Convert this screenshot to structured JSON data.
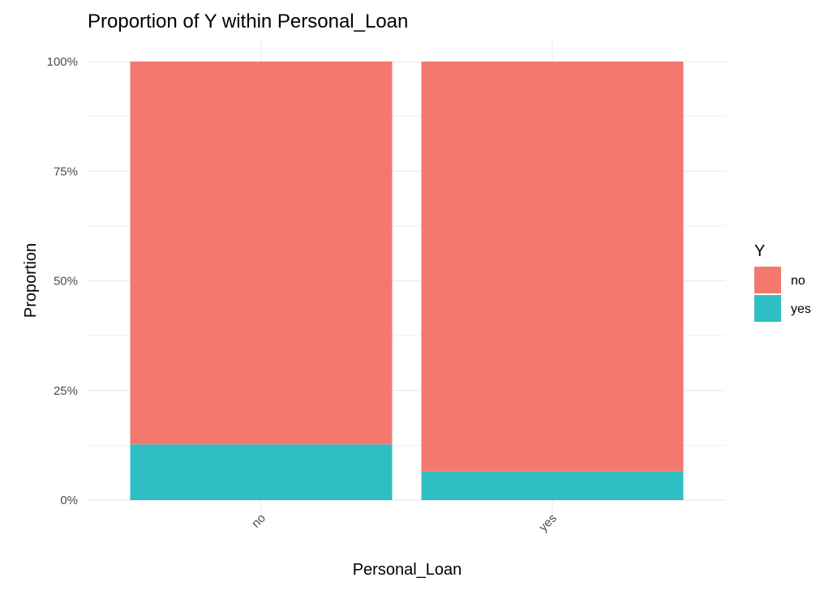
{
  "chart_data": {
    "type": "bar",
    "stacked": true,
    "title": "Proportion of Y within Personal_Loan",
    "xlabel": "Personal_Loan",
    "ylabel": "Proportion",
    "categories": [
      "no",
      "yes"
    ],
    "series": [
      {
        "name": "yes",
        "values": [
          0.127,
          0.065
        ],
        "color": "#2ebfc4"
      },
      {
        "name": "no",
        "values": [
          0.873,
          0.935
        ],
        "color": "#f3786d"
      }
    ],
    "yticks": [
      0,
      0.25,
      0.5,
      0.75,
      1.0
    ],
    "ytick_labels": [
      "0%",
      "25%",
      "50%",
      "75%",
      "100%"
    ],
    "ylim": [
      0,
      1
    ],
    "grid": true,
    "legend": {
      "title": "Y",
      "position": "right",
      "entries": [
        "no",
        "yes"
      ]
    }
  },
  "colors": {
    "grid": "#ebebeb",
    "tick_text": "#4d4d4d"
  }
}
